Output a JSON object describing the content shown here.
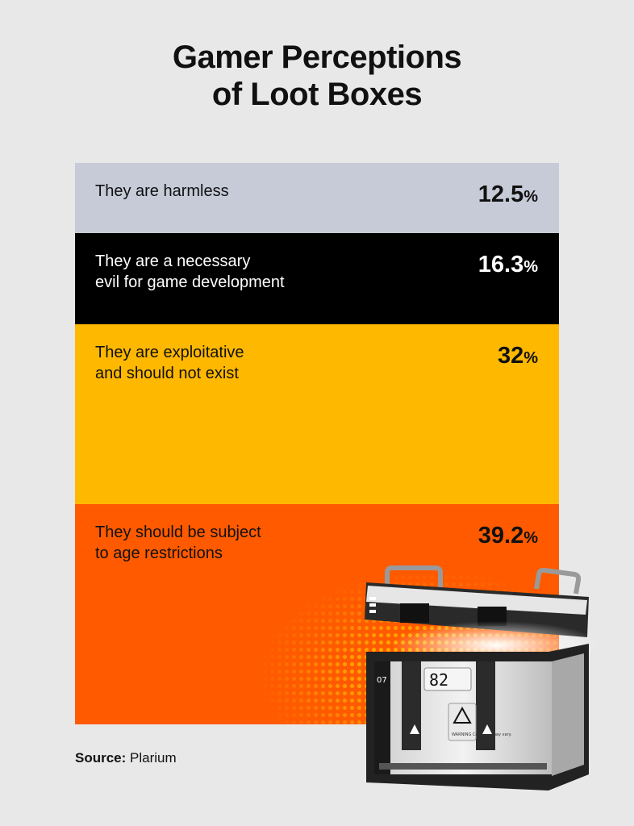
{
  "header": {
    "title_line1": "Gamer Perceptions",
    "title_line2": "of Loot Boxes"
  },
  "chart_data": {
    "type": "bar",
    "categories": [
      "They are harmless",
      "They are a necessary\nevil for game development",
      "They are exploitative\nand should not exist",
      "They should be subject\nto age restrictions"
    ],
    "values": [
      12.5,
      16.3,
      32,
      39.2
    ],
    "value_labels": [
      "12.5",
      "16.3",
      "32",
      "39.2"
    ],
    "unit": "%",
    "colors": [
      "#c7cbd8",
      "#000000",
      "#ffb800",
      "#ff5a00"
    ],
    "label_colors": [
      "#111111",
      "#ffffff",
      "#111111",
      "#111111"
    ]
  },
  "source": {
    "label": "Source:",
    "value": "Plarium"
  },
  "illustration": {
    "crate_number": "82",
    "side_number": "07",
    "warning_text": "WARNING Contents may vary."
  }
}
